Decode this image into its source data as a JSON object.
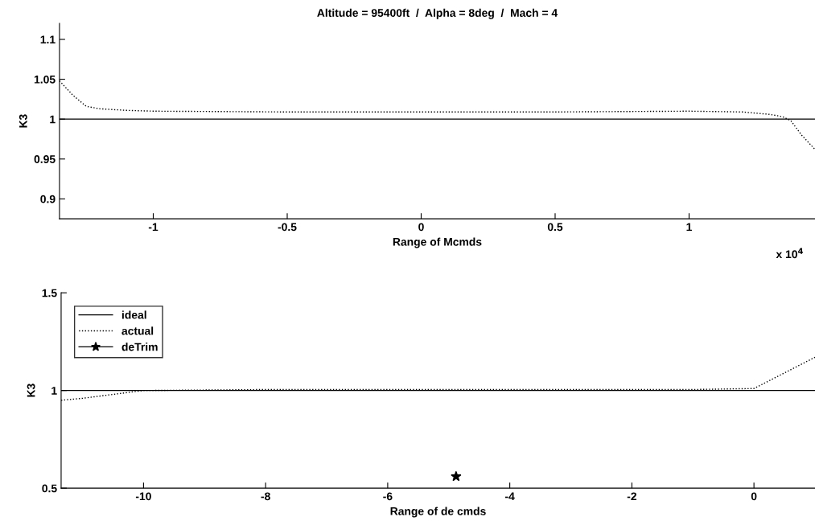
{
  "chart_data": [
    {
      "type": "line",
      "title": "Altitude = 95400ft  /  Alpha = 8deg  /  Mach = 4",
      "xlabel": "Range of Mcmds",
      "ylabel": "K3",
      "xlim": [
        -1.35,
        1.47
      ],
      "xticks": [
        -1,
        -0.5,
        0,
        0.5,
        1
      ],
      "ylim": [
        0.875,
        1.12
      ],
      "yticks": [
        0.9,
        0.95,
        1,
        1.05,
        1.1
      ],
      "annotations": [
        "x 10$^{4}$"
      ],
      "series": [
        {
          "color": "#000000",
          "line_style": "solid",
          "x": [
            -1.35,
            1.47
          ],
          "values": [
            1,
            1
          ]
        },
        {
          "color": "#000000",
          "line_style": "dotted",
          "x": [
            -1.35,
            -1.3,
            -1.25,
            -1.2,
            -1.1,
            -1.0,
            -0.5,
            0,
            0.5,
            1.0,
            1.2,
            1.3,
            1.35,
            1.38,
            1.42,
            1.47
          ],
          "values": [
            1.048,
            1.03,
            1.016,
            1.013,
            1.011,
            1.01,
            1.009,
            1.009,
            1.009,
            1.01,
            1.009,
            1.006,
            1.003,
            0.998,
            0.98,
            0.962
          ]
        }
      ]
    },
    {
      "type": "line",
      "xlabel": "Range of de cmds",
      "ylabel": "K3",
      "legend": "top left",
      "xlim": [
        -11.35,
        1.0
      ],
      "xticks": [
        -10,
        -8,
        -6,
        -4,
        -2,
        0
      ],
      "ylim": [
        0.5,
        1.5
      ],
      "yticks": [
        0.5,
        1,
        1.5
      ],
      "series": [
        {
          "name": "ideal",
          "color": "#000000",
          "line_style": "solid",
          "x": [
            -11.35,
            1.0
          ],
          "values": [
            1,
            1
          ]
        },
        {
          "name": "actual",
          "color": "#000000",
          "line_style": "dotted",
          "x": [
            -11.35,
            -11,
            -10.5,
            -10,
            -8,
            -4,
            -1,
            0,
            0.5,
            1.0
          ],
          "values": [
            0.95,
            0.96,
            0.98,
            1.0,
            1.005,
            1.005,
            1.005,
            1.01,
            1.09,
            1.17
          ]
        },
        {
          "type": "scatter",
          "name": "deTrim",
          "color": "#000000",
          "marker": "star",
          "x": [
            -4.88
          ],
          "values": [
            0.56
          ]
        }
      ]
    }
  ]
}
